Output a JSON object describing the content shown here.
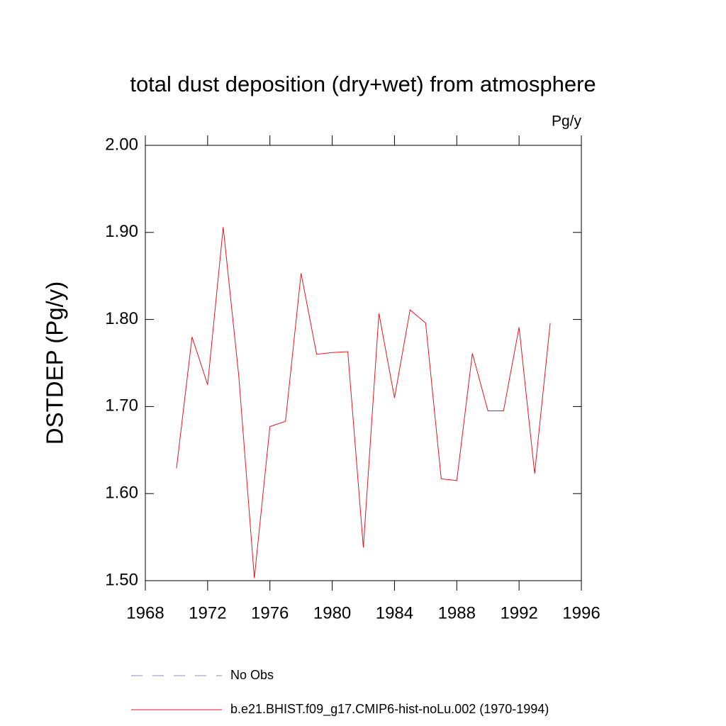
{
  "chart_data": {
    "type": "line",
    "title": "total dust deposition (dry+wet) from atmosphere",
    "units": "Pg/y",
    "y_label": "DSTDEP  (Pg/y)",
    "x": [
      1970,
      1971,
      1972,
      1973,
      1974,
      1975,
      1976,
      1977,
      1978,
      1979,
      1980,
      1981,
      1982,
      1983,
      1984,
      1985,
      1986,
      1987,
      1988,
      1989,
      1990,
      1991,
      1992,
      1993,
      1994
    ],
    "series": [
      {
        "name": "b.e21.BHIST.f09_g17.CMIP6-hist-noLu.002 (1970-1994)",
        "color": "#e8141e",
        "values": [
          1.629,
          1.78,
          1.725,
          1.906,
          1.735,
          1.503,
          1.677,
          1.683,
          1.853,
          1.76,
          1.762,
          1.763,
          1.538,
          1.807,
          1.71,
          1.811,
          1.796,
          1.617,
          1.615,
          1.761,
          1.695,
          1.695,
          1.791,
          1.623,
          1.796
        ]
      }
    ],
    "reference": {
      "name": "No Obs",
      "color": "#8a8ad8"
    },
    "xlim": [
      1968,
      1996
    ],
    "xticks": [
      1968,
      1972,
      1976,
      1980,
      1984,
      1988,
      1992,
      1996
    ],
    "ylim": [
      1.5,
      2.0
    ],
    "yticks": [
      {
        "value": 1.5,
        "label": "1.50"
      },
      {
        "value": 1.6,
        "label": "1.60"
      },
      {
        "value": 1.7,
        "label": "1.70"
      },
      {
        "value": 1.8,
        "label": "1.80"
      },
      {
        "value": 1.9,
        "label": "1.90"
      },
      {
        "value": 2.0,
        "label": "2.00"
      }
    ]
  }
}
